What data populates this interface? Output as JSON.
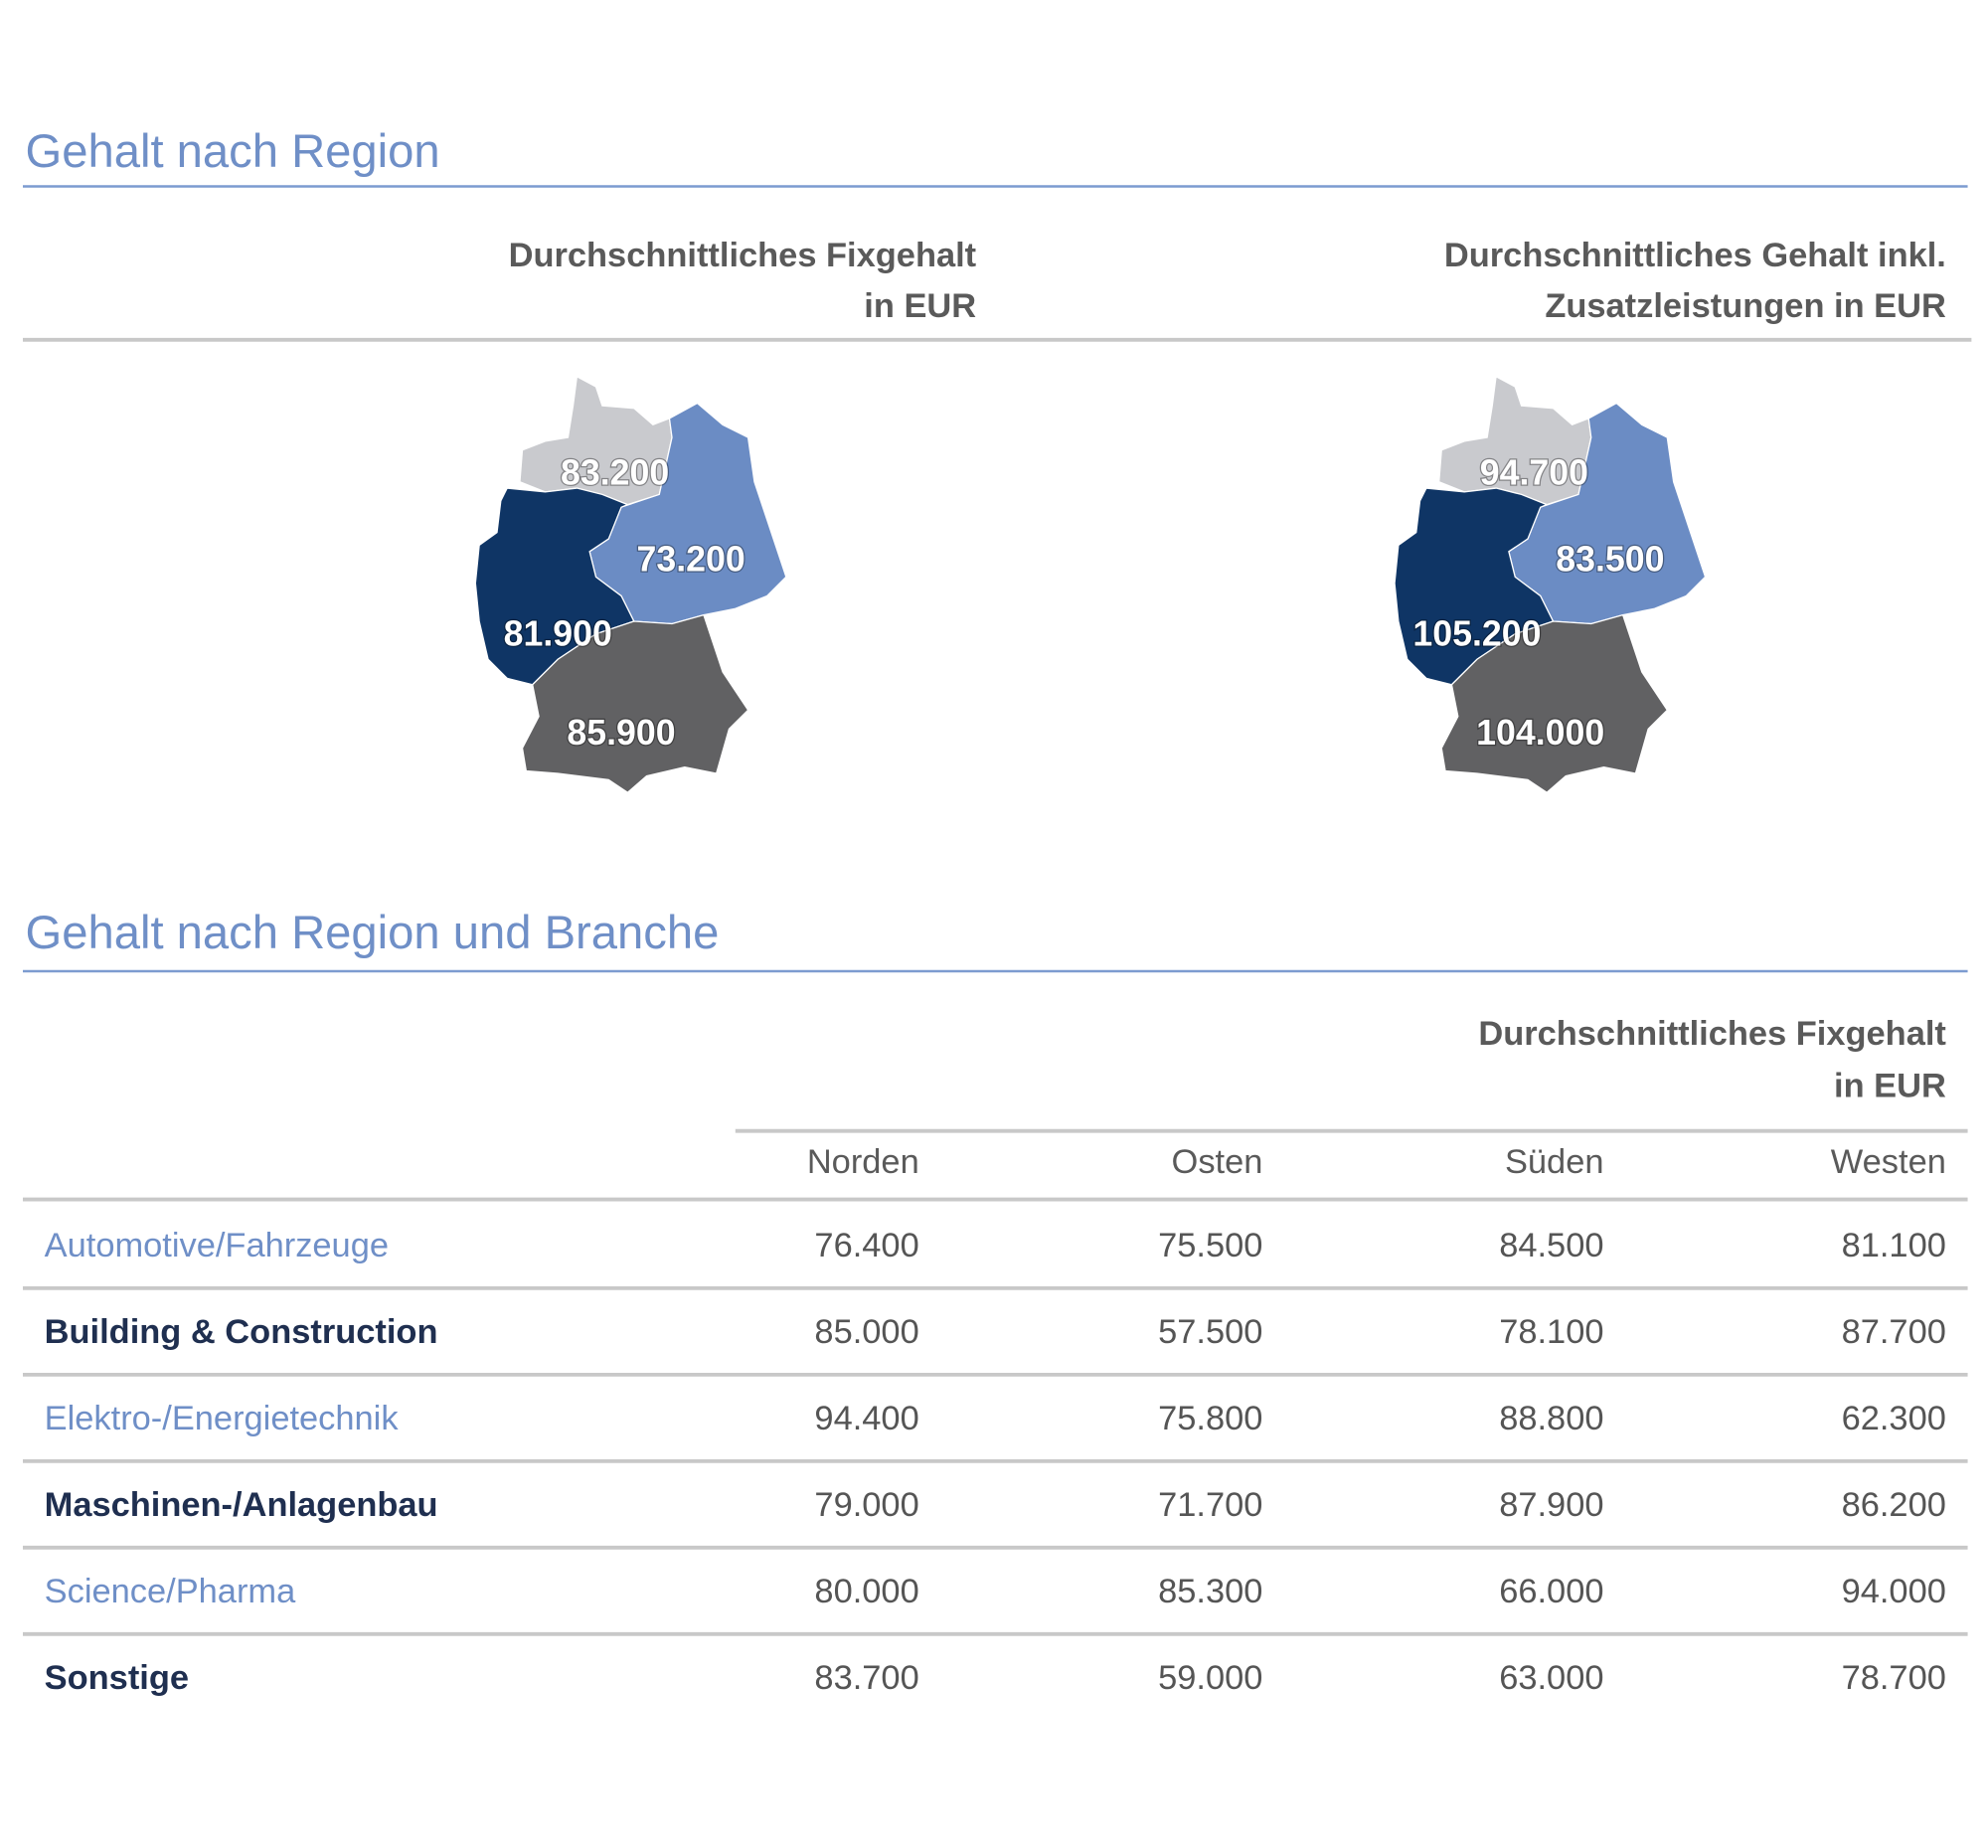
{
  "region_maps": {
    "title": "Gehalt nach Region",
    "maps": [
      {
        "caption_lines": [
          "Durchschnittliches Fixgehalt",
          "in EUR"
        ],
        "values": [
          "83.200",
          "73.200",
          "81.900",
          "85.900"
        ]
      },
      {
        "caption_lines": [
          "Durchschnittliches Gehalt inkl.",
          "Zusatzleistungen in EUR"
        ],
        "values": [
          "94.700",
          "83.500",
          "105.200",
          "104.000"
        ]
      }
    ]
  },
  "table": {
    "title": "Gehalt nach Region und Branche",
    "caption_lines": [
      "Durchschnittliches Fixgehalt",
      "in EUR"
    ],
    "columns": [
      "Norden",
      "Osten",
      "Süden",
      "Westen"
    ],
    "rows": [
      {
        "label": "Automotive/Fahrzeuge",
        "values": [
          "76.400",
          "75.500",
          "84.500",
          "81.100"
        ]
      },
      {
        "label": "Building & Construction",
        "values": [
          "85.000",
          "57.500",
          "78.100",
          "87.700"
        ]
      },
      {
        "label": "Elektro-/Energietechnik",
        "values": [
          "94.400",
          "75.800",
          "88.800",
          "62.300"
        ]
      },
      {
        "label": "Maschinen-/Anlagenbau",
        "values": [
          "79.000",
          "71.700",
          "87.900",
          "86.200"
        ]
      },
      {
        "label": "Science/Pharma",
        "values": [
          "80.000",
          "85.300",
          "66.000",
          "94.000"
        ]
      },
      {
        "label": "Sonstige",
        "values": [
          "83.700",
          "59.000",
          "63.000",
          "78.700"
        ]
      }
    ]
  }
}
